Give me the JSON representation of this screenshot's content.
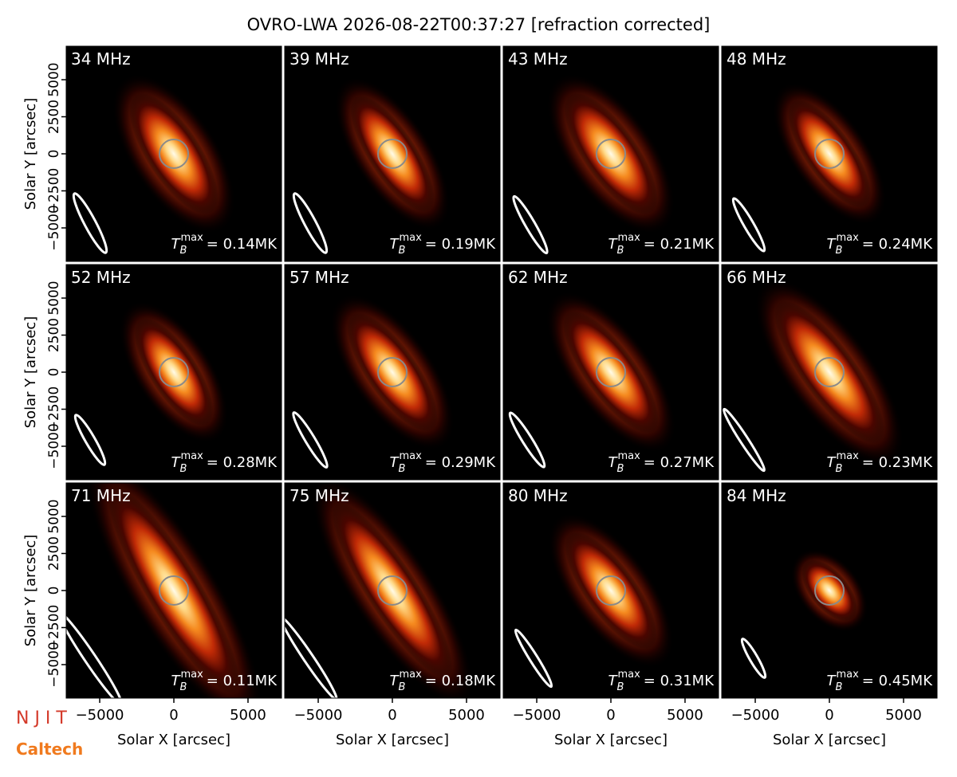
{
  "figure": {
    "title": "OVRO-LWA 2026-08-22T00:37:27 [refraction corrected]",
    "xlabel": "Solar X [arcsec]",
    "ylabel": "Solar Y [arcsec]",
    "xlim": [
      -7260,
      7260
    ],
    "ylim": [
      -7260,
      7260
    ],
    "xticks": [
      {
        "value": -5000,
        "label": "−5000"
      },
      0,
      5000
    ],
    "yticks": [
      {
        "value": -5000,
        "label": "−5000"
      },
      {
        "value": -2500,
        "label": "−2500"
      },
      0,
      2500,
      5000
    ],
    "logos": [
      "N J I T",
      "Caltech"
    ]
  },
  "chart_data": [
    {
      "type": "image",
      "title": "34 MHz",
      "tb_label": {
        "symbol": "T",
        "sub": "B",
        "sup": "max",
        "text": "= 0.14MK"
      }
    },
    {
      "type": "image",
      "title": "39 MHz",
      "tb_label": {
        "symbol": "T",
        "sub": "B",
        "sup": "max",
        "text": "= 0.19MK"
      }
    },
    {
      "type": "image",
      "title": "43 MHz",
      "tb_label": {
        "symbol": "T",
        "sub": "B",
        "sup": "max",
        "text": "= 0.21MK"
      }
    },
    {
      "type": "image",
      "title": "48 MHz",
      "tb_label": {
        "symbol": "T",
        "sub": "B",
        "sup": "max",
        "text": "= 0.24MK"
      }
    },
    {
      "type": "image",
      "title": "52 MHz",
      "tb_label": {
        "symbol": "T",
        "sub": "B",
        "sup": "max",
        "text": "= 0.28MK"
      }
    },
    {
      "type": "image",
      "title": "57 MHz",
      "tb_label": {
        "symbol": "T",
        "sub": "B",
        "sup": "max",
        "text": "= 0.29MK"
      }
    },
    {
      "type": "image",
      "title": "62 MHz",
      "tb_label": {
        "symbol": "T",
        "sub": "B",
        "sup": "max",
        "text": "= 0.27MK"
      }
    },
    {
      "type": "image",
      "title": "66 MHz",
      "tb_label": {
        "symbol": "T",
        "sub": "B",
        "sup": "max",
        "text": "= 0.23MK"
      }
    },
    {
      "type": "image",
      "title": "71 MHz",
      "tb_label": {
        "symbol": "T",
        "sub": "B",
        "sup": "max",
        "text": "= 0.11MK"
      }
    },
    {
      "type": "image",
      "title": "75 MHz",
      "tb_label": {
        "symbol": "T",
        "sub": "B",
        "sup": "max",
        "text": "= 0.18MK"
      }
    },
    {
      "type": "image",
      "title": "80 MHz",
      "tb_label": {
        "symbol": "T",
        "sub": "B",
        "sup": "max",
        "text": "= 0.31MK"
      }
    },
    {
      "type": "image",
      "title": "84 MHz",
      "tb_label": {
        "symbol": "T",
        "sub": "B",
        "sup": "max",
        "text": "= 0.45MK"
      }
    }
  ]
}
